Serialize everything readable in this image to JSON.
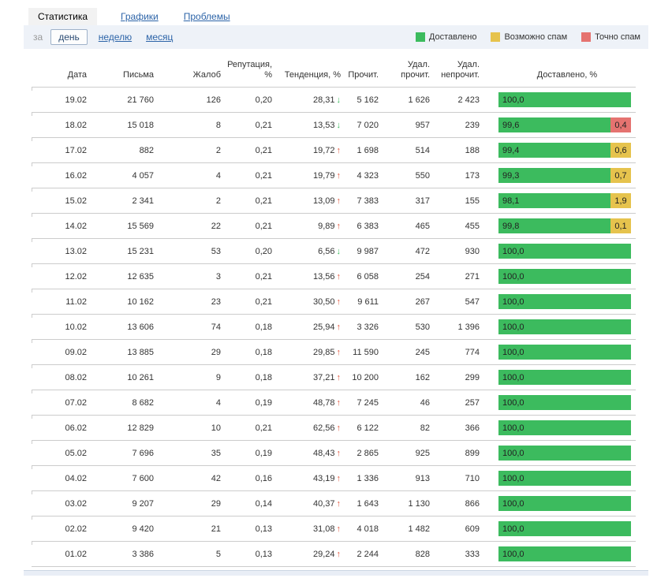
{
  "tabs": [
    {
      "label": "Статистика",
      "active": true
    },
    {
      "label": "Графики",
      "active": false
    },
    {
      "label": "Проблемы",
      "active": false
    }
  ],
  "filter": {
    "prefix": "за",
    "options": [
      {
        "label": "день",
        "selected": true
      },
      {
        "label": "неделю",
        "selected": false
      },
      {
        "label": "месяц",
        "selected": false
      }
    ]
  },
  "legend": [
    {
      "label": "Доставлено",
      "color": "#3cbb5e"
    },
    {
      "label": "Возможно спам",
      "color": "#e6c34d"
    },
    {
      "label": "Точно спам",
      "color": "#e57370"
    }
  ],
  "colors": {
    "delivered": "#3cbb5e",
    "possible_spam": "#e6c34d",
    "certain_spam": "#e57370",
    "trend_up": "#e2573f",
    "trend_down": "#3cbb5e"
  },
  "table": {
    "headers": [
      "Дата",
      "Письма",
      "Жалоб",
      "Репутация, %",
      "Тенденция, %",
      "Прочит.",
      "Удал.\nпрочит.",
      "Удал.\nнепрочит.",
      "Доставлено, %"
    ],
    "rows": [
      {
        "date": "19.02",
        "letters": "21 760",
        "complaints": "126",
        "reputation": "0,20",
        "trend": "28,31",
        "trend_dir": "down",
        "read": "5 162",
        "del_read": "1 626",
        "del_unread": "2 423",
        "delivered": "100,0",
        "spam": null
      },
      {
        "date": "18.02",
        "letters": "15 018",
        "complaints": "8",
        "reputation": "0,21",
        "trend": "13,53",
        "trend_dir": "down",
        "read": "7 020",
        "del_read": "957",
        "del_unread": "239",
        "delivered": "99,6",
        "spam": {
          "label": "0,4",
          "kind": "certain"
        }
      },
      {
        "date": "17.02",
        "letters": "882",
        "complaints": "2",
        "reputation": "0,21",
        "trend": "19,72",
        "trend_dir": "up",
        "read": "1 698",
        "del_read": "514",
        "del_unread": "188",
        "delivered": "99,4",
        "spam": {
          "label": "0,6",
          "kind": "possible"
        }
      },
      {
        "date": "16.02",
        "letters": "4 057",
        "complaints": "4",
        "reputation": "0,21",
        "trend": "19,79",
        "trend_dir": "up",
        "read": "4 323",
        "del_read": "550",
        "del_unread": "173",
        "delivered": "99,3",
        "spam": {
          "label": "0,7",
          "kind": "possible"
        }
      },
      {
        "date": "15.02",
        "letters": "2 341",
        "complaints": "2",
        "reputation": "0,21",
        "trend": "13,09",
        "trend_dir": "up",
        "read": "7 383",
        "del_read": "317",
        "del_unread": "155",
        "delivered": "98,1",
        "spam": {
          "label": "1,9",
          "kind": "possible"
        }
      },
      {
        "date": "14.02",
        "letters": "15 569",
        "complaints": "22",
        "reputation": "0,21",
        "trend": "9,89",
        "trend_dir": "up",
        "read": "6 383",
        "del_read": "465",
        "del_unread": "455",
        "delivered": "99,8",
        "spam": {
          "label": "0,1",
          "kind": "possible"
        }
      },
      {
        "date": "13.02",
        "letters": "15 231",
        "complaints": "53",
        "reputation": "0,20",
        "trend": "6,56",
        "trend_dir": "down",
        "read": "9 987",
        "del_read": "472",
        "del_unread": "930",
        "delivered": "100,0",
        "spam": null
      },
      {
        "date": "12.02",
        "letters": "12 635",
        "complaints": "3",
        "reputation": "0,21",
        "trend": "13,56",
        "trend_dir": "up",
        "read": "6 058",
        "del_read": "254",
        "del_unread": "271",
        "delivered": "100,0",
        "spam": null
      },
      {
        "date": "11.02",
        "letters": "10 162",
        "complaints": "23",
        "reputation": "0,21",
        "trend": "30,50",
        "trend_dir": "up",
        "read": "9 611",
        "del_read": "267",
        "del_unread": "547",
        "delivered": "100,0",
        "spam": null
      },
      {
        "date": "10.02",
        "letters": "13 606",
        "complaints": "74",
        "reputation": "0,18",
        "trend": "25,94",
        "trend_dir": "up",
        "read": "3 326",
        "del_read": "530",
        "del_unread": "1 396",
        "delivered": "100,0",
        "spam": null
      },
      {
        "date": "09.02",
        "letters": "13 885",
        "complaints": "29",
        "reputation": "0,18",
        "trend": "29,85",
        "trend_dir": "up",
        "read": "11 590",
        "del_read": "245",
        "del_unread": "774",
        "delivered": "100,0",
        "spam": null
      },
      {
        "date": "08.02",
        "letters": "10 261",
        "complaints": "9",
        "reputation": "0,18",
        "trend": "37,21",
        "trend_dir": "up",
        "read": "10 200",
        "del_read": "162",
        "del_unread": "299",
        "delivered": "100,0",
        "spam": null
      },
      {
        "date": "07.02",
        "letters": "8 682",
        "complaints": "4",
        "reputation": "0,19",
        "trend": "48,78",
        "trend_dir": "up",
        "read": "7 245",
        "del_read": "46",
        "del_unread": "257",
        "delivered": "100,0",
        "spam": null
      },
      {
        "date": "06.02",
        "letters": "12 829",
        "complaints": "10",
        "reputation": "0,21",
        "trend": "62,56",
        "trend_dir": "up",
        "read": "6 122",
        "del_read": "82",
        "del_unread": "366",
        "delivered": "100,0",
        "spam": null
      },
      {
        "date": "05.02",
        "letters": "7 696",
        "complaints": "35",
        "reputation": "0,19",
        "trend": "48,43",
        "trend_dir": "up",
        "read": "2 865",
        "del_read": "925",
        "del_unread": "899",
        "delivered": "100,0",
        "spam": null
      },
      {
        "date": "04.02",
        "letters": "7 600",
        "complaints": "42",
        "reputation": "0,16",
        "trend": "43,19",
        "trend_dir": "up",
        "read": "1 336",
        "del_read": "913",
        "del_unread": "710",
        "delivered": "100,0",
        "spam": null
      },
      {
        "date": "03.02",
        "letters": "9 207",
        "complaints": "29",
        "reputation": "0,14",
        "trend": "40,37",
        "trend_dir": "up",
        "read": "1 643",
        "del_read": "1 130",
        "del_unread": "866",
        "delivered": "100,0",
        "spam": null
      },
      {
        "date": "02.02",
        "letters": "9 420",
        "complaints": "21",
        "reputation": "0,13",
        "trend": "31,08",
        "trend_dir": "up",
        "read": "4 018",
        "del_read": "1 482",
        "del_unread": "609",
        "delivered": "100,0",
        "spam": null
      },
      {
        "date": "01.02",
        "letters": "3 386",
        "complaints": "5",
        "reputation": "0,13",
        "trend": "29,24",
        "trend_dir": "up",
        "read": "2 244",
        "del_read": "828",
        "del_unread": "333",
        "delivered": "100,0",
        "spam": null
      }
    ]
  }
}
